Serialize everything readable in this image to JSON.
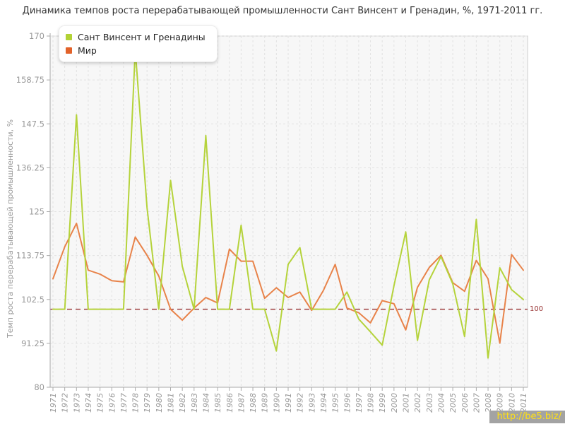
{
  "page": {
    "watermark": "http://be5.biz/"
  },
  "chart_data": {
    "type": "line",
    "title": "Динамика темпов роста перерабатывающей промышленности Сант Винсент и Гренадин, %, 1971-2011 гг.",
    "ylabel": "Темп роста перерабатывающей промышленности, %",
    "xlabel": "",
    "ylim": [
      80,
      170
    ],
    "y_ticks": [
      "80",
      "91.25",
      "102.5",
      "113.75",
      "125",
      "136.25",
      "147.5",
      "158.75",
      "170"
    ],
    "grid": true,
    "legend_position": "top-left",
    "plot_background": "#f7f7f7",
    "baseline": {
      "value": 100,
      "label": "100",
      "color": "#993333"
    },
    "years": [
      "1971",
      "1972",
      "1973",
      "1974",
      "1975",
      "1976",
      "1977",
      "1978",
      "1979",
      "1980",
      "1981",
      "1982",
      "1983",
      "1984",
      "1985",
      "1986",
      "1987",
      "1988",
      "1989",
      "1990",
      "1991",
      "1992",
      "1993",
      "1994",
      "1995",
      "1996",
      "1997",
      "1998",
      "1999",
      "2000",
      "2001",
      "2002",
      "2003",
      "2004",
      "2005",
      "2006",
      "2007",
      "2008",
      "2009",
      "2010",
      "2011"
    ],
    "series": [
      {
        "name": "Сант Винсент и Гренадины",
        "color": "#b5d33b",
        "marker_color": "#b2d235",
        "values": [
          100,
          100,
          149.8,
          100,
          100,
          100,
          100,
          166.5,
          126,
          100,
          133,
          111,
          100,
          144.5,
          100,
          100,
          121.5,
          100,
          100,
          89.3,
          111.5,
          115.8,
          100,
          100,
          100,
          104.4,
          97.5,
          94.2,
          90.8,
          106,
          119.8,
          92,
          107.5,
          113.5,
          106.5,
          93,
          123,
          87.5,
          110.6,
          105,
          102.5
        ]
      },
      {
        "name": "Мир",
        "color": "#e8834a",
        "marker_color": "#e2622a",
        "values": [
          107.8,
          116,
          122,
          110,
          109,
          107.3,
          107,
          118.5,
          113.8,
          108.5,
          100,
          97.2,
          100.3,
          103,
          101.6,
          115.4,
          112.3,
          112.3,
          102.8,
          105.5,
          103,
          104.4,
          99.7,
          104.8,
          111.5,
          100.3,
          99.1,
          96.5,
          102.2,
          101.4,
          94.7,
          105.6,
          110.7,
          113.8,
          106.8,
          104.6,
          112.5,
          107.8,
          91.3,
          114,
          110
        ]
      }
    ],
    "colors": {
      "grid": "#e2e2e2",
      "axis": "#aaaaaa",
      "tick_label": "#999999",
      "plot_border": "#cccccc",
      "title_text": "#333333",
      "watermark_bg": "#a3a3a3",
      "watermark_text": "#ffe014"
    }
  }
}
